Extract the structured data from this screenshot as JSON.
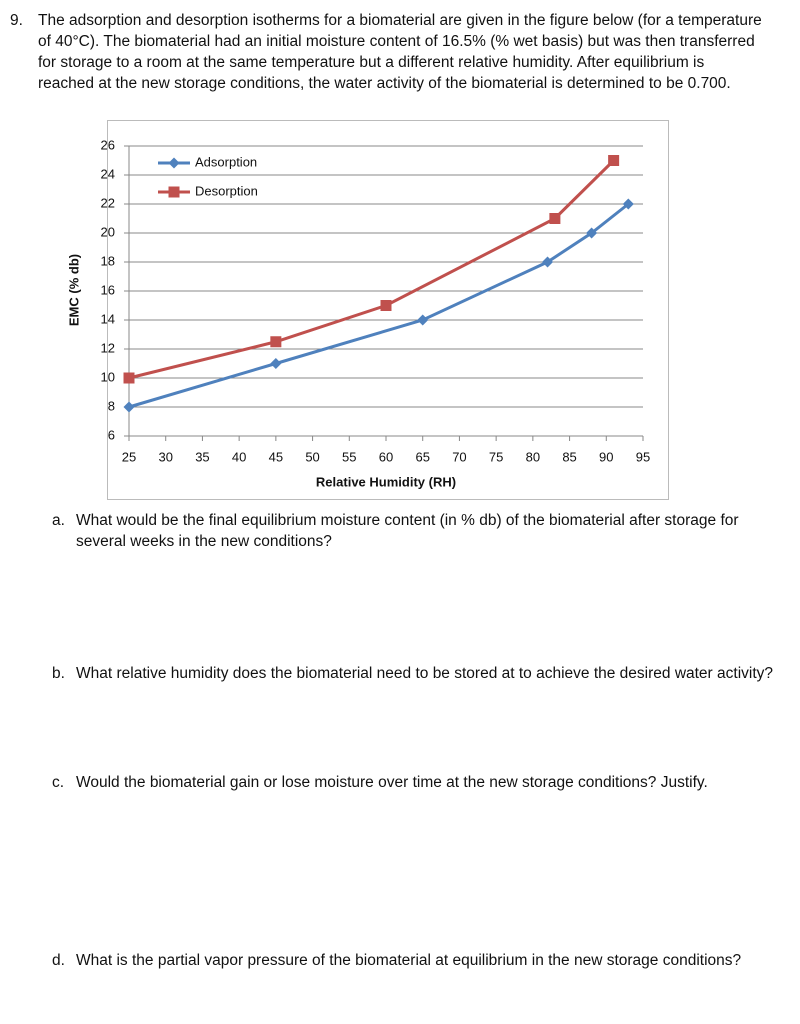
{
  "question": {
    "number": "9.",
    "text": "The adsorption and desorption isotherms for a biomaterial are given in the figure below (for a temperature of 40°C). The biomaterial had an initial moisture content of 16.5% (% wet basis) but was then transferred for storage to a room at the same temperature but a different relative humidity. After equilibrium is reached at the new storage conditions, the water activity of the biomaterial is determined to be 0.700."
  },
  "chart_data": {
    "type": "line",
    "x_label": "Relative Humidity (RH)",
    "y_label": "EMC (% db)",
    "series": [
      {
        "name": "Adsorption",
        "color": "#4f81bd",
        "marker": "diamond",
        "x": [
          25,
          45,
          65,
          82,
          88,
          93
        ],
        "values": [
          8,
          11,
          14,
          18,
          20,
          22
        ]
      },
      {
        "name": "Desorption",
        "color": "#c0504d",
        "marker": "square",
        "x": [
          25,
          45,
          60,
          83,
          91
        ],
        "values": [
          10,
          12.5,
          15,
          21,
          25
        ]
      }
    ],
    "xlim": [
      25,
      95
    ],
    "xticks": [
      25,
      30,
      35,
      40,
      45,
      50,
      55,
      60,
      65,
      70,
      75,
      80,
      85,
      90,
      95
    ],
    "ylim": [
      6,
      26
    ],
    "yticks": [
      6,
      8,
      10,
      12,
      14,
      16,
      18,
      20,
      22,
      24,
      26
    ],
    "grid": true,
    "legend": "upper left"
  },
  "parts": [
    {
      "letter": "a.",
      "text": "What would be the final equilibrium moisture content (in % db) of the biomaterial after storage for several weeks in the new conditions?"
    },
    {
      "letter": "b.",
      "text": "What relative humidity does the biomaterial need to be stored at to achieve the desired water activity?"
    },
    {
      "letter": "c.",
      "text": "Would the biomaterial gain or lose moisture over time at the new storage conditions? Justify."
    },
    {
      "letter": "d.",
      "text": "What is the partial vapor pressure of the biomaterial at equilibrium in the new storage conditions?"
    }
  ]
}
